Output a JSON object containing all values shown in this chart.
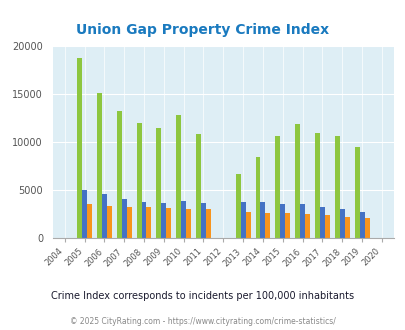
{
  "title": "Union Gap Property Crime Index",
  "subtitle": "Crime Index corresponds to incidents per 100,000 inhabitants",
  "footer": "© 2025 CityRating.com - https://www.cityrating.com/crime-statistics/",
  "years": [
    2004,
    2005,
    2006,
    2007,
    2008,
    2009,
    2010,
    2011,
    2012,
    2013,
    2014,
    2015,
    2016,
    2017,
    2018,
    2019,
    2020
  ],
  "union_gap": [
    0,
    18800,
    15100,
    13200,
    12000,
    11500,
    12800,
    10800,
    0,
    6600,
    8400,
    10600,
    11900,
    10900,
    10600,
    9500,
    0
  ],
  "washington": [
    0,
    4950,
    4550,
    4000,
    3750,
    3650,
    3800,
    3650,
    0,
    3750,
    3750,
    3500,
    3550,
    3200,
    3000,
    2700,
    0
  ],
  "national": [
    0,
    3500,
    3350,
    3200,
    3200,
    3100,
    3000,
    2950,
    0,
    2700,
    2600,
    2550,
    2450,
    2350,
    2200,
    2050,
    0
  ],
  "union_gap_color": "#8dc63f",
  "washington_color": "#4472c4",
  "national_color": "#f7941d",
  "bg_color": "#deeef5",
  "ylim": [
    0,
    20000
  ],
  "yticks": [
    0,
    5000,
    10000,
    15000,
    20000
  ],
  "ytick_labels": [
    "0",
    "5000",
    "10000",
    "15000",
    "20000"
  ],
  "title_color": "#1a7abf",
  "subtitle_color": "#1a1a2e",
  "footer_color": "#888888",
  "footer_url_color": "#1a7abf",
  "bar_width": 0.25
}
